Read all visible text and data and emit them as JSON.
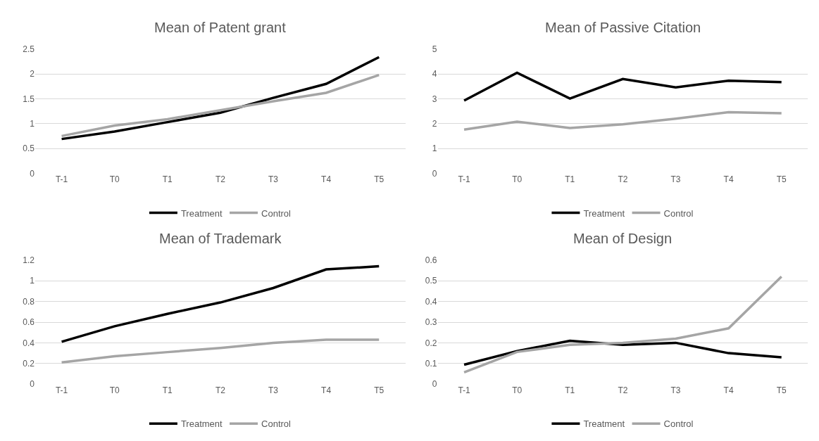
{
  "chart_data": [
    {
      "type": "line",
      "title": "Mean of Patent grant",
      "categories": [
        "T-1",
        "T0",
        "T1",
        "T2",
        "T3",
        "T4",
        "T5"
      ],
      "ylim": [
        0,
        2.5
      ],
      "yticks": [
        0,
        0.5,
        1,
        1.5,
        2,
        2.5
      ],
      "grid": "y",
      "legend": "bottom",
      "line_style": "solid",
      "series": [
        {
          "name": "Treatment",
          "color": "#000000",
          "values": [
            0.69,
            0.84,
            1.03,
            1.22,
            1.52,
            1.8,
            2.34
          ]
        },
        {
          "name": "Control",
          "color": "#a5a5a5",
          "values": [
            0.75,
            0.96,
            1.09,
            1.27,
            1.45,
            1.62,
            1.98
          ]
        }
      ]
    },
    {
      "type": "line",
      "title": "Mean of Passive Citation",
      "categories": [
        "T-1",
        "T0",
        "T1",
        "T2",
        "T3",
        "T4",
        "T5"
      ],
      "ylim": [
        0,
        5
      ],
      "yticks": [
        0,
        1,
        2,
        3,
        4,
        5
      ],
      "grid": "y",
      "legend": "bottom",
      "line_style": "solid",
      "series": [
        {
          "name": "Treatment",
          "color": "#000000",
          "values": [
            2.93,
            4.05,
            3.01,
            3.8,
            3.46,
            3.73,
            3.67
          ]
        },
        {
          "name": "Control",
          "color": "#a5a5a5",
          "values": [
            1.76,
            2.08,
            1.82,
            1.97,
            2.2,
            2.46,
            2.42
          ]
        }
      ]
    },
    {
      "type": "line",
      "title": "Mean of Trademark",
      "categories": [
        "T-1",
        "T0",
        "T1",
        "T2",
        "T3",
        "T4",
        "T5"
      ],
      "ylim": [
        0,
        1.2
      ],
      "yticks": [
        0,
        0.2,
        0.4,
        0.6,
        0.8,
        1,
        1.2
      ],
      "grid": "y",
      "legend": "bottom",
      "line_style": "solid",
      "series": [
        {
          "name": "Treatment",
          "color": "#000000",
          "values": [
            0.41,
            0.56,
            0.68,
            0.79,
            0.93,
            1.11,
            1.14
          ]
        },
        {
          "name": "Control",
          "color": "#a5a5a5",
          "values": [
            0.21,
            0.27,
            0.31,
            0.35,
            0.4,
            0.43,
            0.43
          ]
        }
      ]
    },
    {
      "type": "line",
      "title": "Mean of Design",
      "categories": [
        "T-1",
        "T0",
        "T1",
        "T2",
        "T3",
        "T4",
        "T5"
      ],
      "ylim": [
        0,
        0.6
      ],
      "yticks": [
        0,
        0.1,
        0.2,
        0.3,
        0.4,
        0.5,
        0.6
      ],
      "grid": "y",
      "legend": "bottom",
      "line_style": "solid",
      "series": [
        {
          "name": "Treatment",
          "color": "#000000",
          "values": [
            0.094,
            0.16,
            0.21,
            0.19,
            0.2,
            0.15,
            0.13
          ]
        },
        {
          "name": "Control",
          "color": "#a5a5a5",
          "values": [
            0.057,
            0.156,
            0.19,
            0.2,
            0.22,
            0.27,
            0.52
          ]
        }
      ]
    }
  ]
}
